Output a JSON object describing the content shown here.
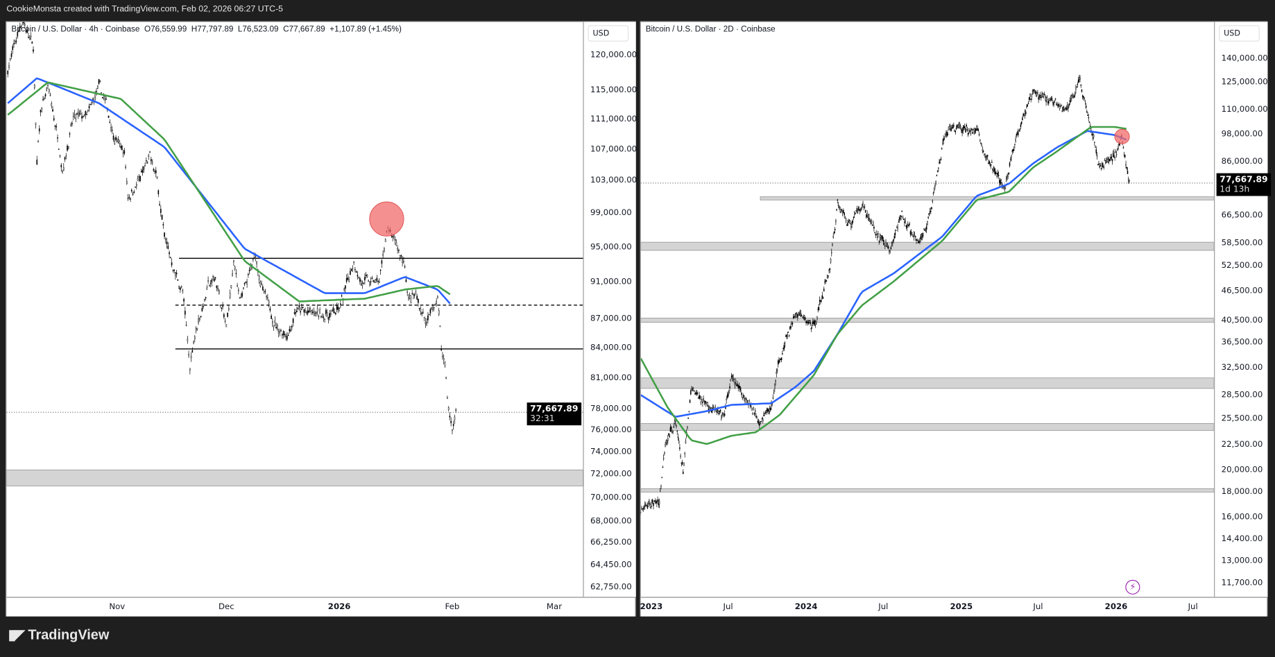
{
  "header": {
    "attribution": "CookieMonsta created with TradingView.com, Feb 02, 2026 06:27 UTC-5"
  },
  "brand": {
    "logo_text": "TradingView"
  },
  "colors": {
    "ma_fast": "#2962ff",
    "ma_slow": "#43a047",
    "circle": "#f26b6b",
    "zone": "#d4d4d4",
    "candle": "#000000",
    "alert": "#9c27b0"
  },
  "chart_data": [
    {
      "type": "candlestick",
      "legend": {
        "symbol": "Bitcoin / U.S. Dollar · 4h · Coinbase",
        "open": "O76,559.99",
        "high": "H77,797.89",
        "low": "L76,523.09",
        "close": "C77,667.89",
        "change": "+1,107.89 (+1.45%)"
      },
      "currency": "USD",
      "scale": "log",
      "ylim": [
        62000,
        127000
      ],
      "y_ticks": [
        "120,000.00",
        "115,000.00",
        "111,000.00",
        "107,000.00",
        "103,000.00",
        "99,000.00",
        "95,000.00",
        "91,000.00",
        "87,000.00",
        "84,000.00",
        "81,000.00",
        "78,000.00",
        "76,000.00",
        "74,000.00",
        "72,000.00",
        "70,000.00",
        "68,000.00",
        "66,250.00",
        "64,450.00",
        "62,750.00"
      ],
      "x_ticks": [
        {
          "label": "Nov",
          "date": "2025-11-01",
          "bold": false
        },
        {
          "label": "Dec",
          "date": "2025-12-01",
          "bold": false
        },
        {
          "label": "2026",
          "date": "2026-01-01",
          "bold": true
        },
        {
          "label": "Feb",
          "date": "2026-02-01",
          "bold": false
        },
        {
          "label": "Mar",
          "date": "2026-03-01",
          "bold": false
        }
      ],
      "last_price": {
        "value": "77,667.89",
        "countdown": "32:31",
        "price": 77667.89
      },
      "price_path": [
        [
          "2025-10-02",
          118000
        ],
        [
          "2025-10-06",
          125500
        ],
        [
          "2025-10-09",
          121000
        ],
        [
          "2025-10-10",
          105000
        ],
        [
          "2025-10-11",
          112000
        ],
        [
          "2025-10-13",
          115500
        ],
        [
          "2025-10-16",
          108000
        ],
        [
          "2025-10-17",
          104500
        ],
        [
          "2025-10-20",
          111000
        ],
        [
          "2025-10-24",
          111500
        ],
        [
          "2025-10-27",
          115500
        ],
        [
          "2025-10-29",
          113000
        ],
        [
          "2025-10-31",
          109000
        ],
        [
          "2025-11-03",
          106500
        ],
        [
          "2025-11-04",
          101000
        ],
        [
          "2025-11-07",
          103000
        ],
        [
          "2025-11-10",
          106000
        ],
        [
          "2025-11-12",
          103000
        ],
        [
          "2025-11-14",
          96000
        ],
        [
          "2025-11-17",
          92000
        ],
        [
          "2025-11-19",
          90000
        ],
        [
          "2025-11-21",
          82000
        ],
        [
          "2025-11-22",
          85000
        ],
        [
          "2025-11-26",
          90500
        ],
        [
          "2025-11-28",
          91500
        ],
        [
          "2025-12-01",
          86000
        ],
        [
          "2025-12-03",
          93000
        ],
        [
          "2025-12-05",
          89000
        ],
        [
          "2025-12-09",
          94000
        ],
        [
          "2025-12-11",
          90000
        ],
        [
          "2025-12-15",
          86000
        ],
        [
          "2025-12-18",
          85500
        ],
        [
          "2025-12-20",
          88000
        ],
        [
          "2025-12-25",
          87500
        ],
        [
          "2025-12-29",
          87500
        ],
        [
          "2026-01-01",
          88000
        ],
        [
          "2026-01-05",
          93500
        ],
        [
          "2026-01-07",
          91000
        ],
        [
          "2026-01-12",
          91000
        ],
        [
          "2026-01-14",
          97000
        ],
        [
          "2026-01-15",
          96500
        ],
        [
          "2026-01-19",
          93000
        ],
        [
          "2026-01-20",
          89000
        ],
        [
          "2026-01-22",
          89500
        ],
        [
          "2026-01-25",
          86500
        ],
        [
          "2026-01-28",
          89500
        ],
        [
          "2026-01-29",
          84000
        ],
        [
          "2026-01-30",
          82500
        ],
        [
          "2026-01-31",
          78000
        ],
        [
          "2026-02-01",
          76000
        ],
        [
          "2026-02-02",
          77668
        ]
      ],
      "series": [
        {
          "name": "MA fast (blue)",
          "points": [
            [
              "2025-10-02",
              113200
            ],
            [
              "2025-10-10",
              116700
            ],
            [
              "2025-10-27",
              113200
            ],
            [
              "2025-11-14",
              107300
            ],
            [
              "2025-12-06",
              94800
            ],
            [
              "2025-12-28",
              89800
            ],
            [
              "2026-01-08",
              89800
            ],
            [
              "2026-01-19",
              91600
            ],
            [
              "2026-01-28",
              90200
            ],
            [
              "2026-02-01",
              88400
            ]
          ]
        },
        {
          "name": "MA slow (green)",
          "points": [
            [
              "2025-10-02",
              111600
            ],
            [
              "2025-10-13",
              116100
            ],
            [
              "2025-11-02",
              113800
            ],
            [
              "2025-11-14",
              108300
            ],
            [
              "2025-12-06",
              93400
            ],
            [
              "2025-12-21",
              88900
            ],
            [
              "2026-01-08",
              89200
            ],
            [
              "2026-01-19",
              90200
            ],
            [
              "2026-01-28",
              90600
            ],
            [
              "2026-02-01",
              89500
            ]
          ]
        }
      ],
      "levels": [
        {
          "kind": "solid",
          "price": 93700,
          "from": "2025-11-18"
        },
        {
          "kind": "dashed",
          "price": 88500,
          "from": "2025-11-17"
        },
        {
          "kind": "solid",
          "price": 83900,
          "from": "2025-11-17"
        }
      ],
      "zones": [
        {
          "low": 71000,
          "high": 72400,
          "from": "2025-10-01"
        }
      ],
      "markers": [
        {
          "date": "2026-01-14",
          "price": 98300
        }
      ]
    },
    {
      "type": "candlestick",
      "legend": {
        "symbol": "Bitcoin / U.S. Dollar · 2D · Coinbase"
      },
      "currency": "USD",
      "scale": "log",
      "ylim": [
        11000,
        150000
      ],
      "y_ticks": [
        "140,000.00",
        "125,000.00",
        "110,000.00",
        "98,000.00",
        "86,000.00",
        "66,500.00",
        "58,500.00",
        "52,500.00",
        "46,500.00",
        "40,500.00",
        "36,500.00",
        "32,500.00",
        "28,500.00",
        "25,500.00",
        "22,500.00",
        "20,000.00",
        "18,000.00",
        "16,000.00",
        "14,400.00",
        "13,000.00",
        "11,700.00"
      ],
      "x_ticks": [
        {
          "label": "2023",
          "date": "2023-01-01",
          "bold": true
        },
        {
          "label": "Jul",
          "date": "2023-07-01",
          "bold": false
        },
        {
          "label": "2024",
          "date": "2024-01-01",
          "bold": true
        },
        {
          "label": "Jul",
          "date": "2024-07-01",
          "bold": false
        },
        {
          "label": "2025",
          "date": "2025-01-01",
          "bold": true
        },
        {
          "label": "Jul",
          "date": "2025-07-01",
          "bold": false
        },
        {
          "label": "2026",
          "date": "2026-01-01",
          "bold": true
        },
        {
          "label": "Jul",
          "date": "2026-07-01",
          "bold": false
        }
      ],
      "last_price": {
        "value": "77,667.89",
        "countdown": "1d 13h",
        "price": 77667.89
      },
      "price_path": [
        [
          "2022-12-07",
          16600
        ],
        [
          "2023-01-20",
          17300
        ],
        [
          "2023-02-03",
          23000
        ],
        [
          "2023-02-27",
          24900
        ],
        [
          "2023-03-17",
          19900
        ],
        [
          "2023-04-05",
          29000
        ],
        [
          "2023-05-12",
          27400
        ],
        [
          "2023-06-19",
          25400
        ],
        [
          "2023-07-09",
          30700
        ],
        [
          "2023-08-15",
          27900
        ],
        [
          "2023-09-13",
          25400
        ],
        [
          "2023-10-11",
          26900
        ],
        [
          "2023-10-30",
          33800
        ],
        [
          "2023-12-07",
          41800
        ],
        [
          "2024-01-19",
          39500
        ],
        [
          "2024-02-25",
          51700
        ],
        [
          "2024-03-15",
          70300
        ],
        [
          "2024-04-13",
          63800
        ],
        [
          "2024-05-11",
          70800
        ],
        [
          "2024-06-18",
          60300
        ],
        [
          "2024-07-17",
          56900
        ],
        [
          "2024-08-14",
          66400
        ],
        [
          "2024-09-21",
          58000
        ],
        [
          "2024-10-20",
          67100
        ],
        [
          "2024-11-17",
          92000
        ],
        [
          "2024-12-06",
          101000
        ],
        [
          "2025-02-06",
          99400
        ],
        [
          "2025-03-07",
          85200
        ],
        [
          "2025-04-14",
          75400
        ],
        [
          "2025-05-12",
          99400
        ],
        [
          "2025-06-19",
          118200
        ],
        [
          "2025-07-27",
          115600
        ],
        [
          "2025-09-03",
          109500
        ],
        [
          "2025-10-06",
          125200
        ],
        [
          "2025-10-25",
          109500
        ],
        [
          "2025-11-12",
          95000
        ],
        [
          "2025-11-21",
          84000
        ],
        [
          "2025-12-28",
          88600
        ],
        [
          "2026-01-14",
          95600
        ],
        [
          "2026-02-01",
          77668
        ]
      ],
      "series": [
        {
          "name": "MA fast (blue)",
          "points": [
            [
              "2022-12-07",
              28500
            ],
            [
              "2023-02-27",
              25700
            ],
            [
              "2023-05-12",
              26400
            ],
            [
              "2023-07-09",
              27200
            ],
            [
              "2023-10-11",
              27400
            ],
            [
              "2023-12-07",
              29600
            ],
            [
              "2024-01-19",
              31900
            ],
            [
              "2024-03-15",
              38000
            ],
            [
              "2024-05-11",
              46400
            ],
            [
              "2024-07-26",
              50700
            ],
            [
              "2024-11-17",
              60300
            ],
            [
              "2025-02-06",
              73100
            ],
            [
              "2025-04-23",
              77400
            ],
            [
              "2025-06-19",
              85200
            ],
            [
              "2025-08-15",
              92000
            ],
            [
              "2025-10-25",
              99400
            ],
            [
              "2025-12-28",
              97500
            ],
            [
              "2026-01-31",
              94900
            ]
          ]
        },
        {
          "name": "MA slow (green)",
          "points": [
            [
              "2022-12-07",
              33900
            ],
            [
              "2023-02-08",
              26900
            ],
            [
              "2023-04-05",
              23000
            ],
            [
              "2023-05-12",
              22600
            ],
            [
              "2023-07-09",
              23500
            ],
            [
              "2023-09-05",
              23900
            ],
            [
              "2023-10-30",
              25900
            ],
            [
              "2024-01-19",
              31300
            ],
            [
              "2024-03-15",
              38000
            ],
            [
              "2024-05-11",
              43500
            ],
            [
              "2024-07-26",
              48800
            ],
            [
              "2024-11-17",
              59100
            ],
            [
              "2025-02-06",
              71700
            ],
            [
              "2025-04-23",
              74500
            ],
            [
              "2025-06-19",
              83600
            ],
            [
              "2025-08-15",
              90300
            ],
            [
              "2025-11-03",
              101300
            ],
            [
              "2025-12-28",
              101300
            ],
            [
              "2026-01-31",
              100200
            ]
          ]
        }
      ],
      "zones": [
        {
          "low": 71700,
          "high": 72800,
          "from": "2023-09-15"
        },
        {
          "low": 56500,
          "high": 58700,
          "from": "2022-12-01"
        },
        {
          "low": 40200,
          "high": 41000,
          "from": "2022-12-01"
        },
        {
          "low": 29400,
          "high": 30900,
          "from": "2022-12-01"
        },
        {
          "low": 24100,
          "high": 24900,
          "from": "2022-12-01"
        },
        {
          "low": 18000,
          "high": 18300,
          "from": "2022-12-01"
        }
      ],
      "markers": [
        {
          "date": "2026-01-15",
          "price": 96800
        }
      ]
    }
  ]
}
